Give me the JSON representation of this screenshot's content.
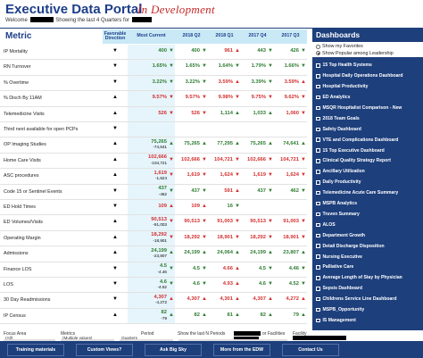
{
  "header": {
    "title": "Executive Data Portal",
    "dev_label": "In Development",
    "subtitle_prefix": "Welcome",
    "subtitle_suffix": "Showing the last 4 Quarters for"
  },
  "table": {
    "metric_header": "Metric",
    "fav_header": "Favorable Direction",
    "current_header": "Most Current",
    "quarters": [
      "2018 Q2",
      "2018 Q1",
      "2017 Q4",
      "2017 Q3"
    ],
    "rows": [
      {
        "name": "IP Mortality",
        "dir": "▼",
        "cur": [
          "400",
          "",
          "green",
          "down"
        ],
        "q": [
          [
            "400",
            "green",
            "down"
          ],
          [
            "961",
            "red",
            "up"
          ],
          [
            "443",
            "green",
            "down"
          ],
          [
            "426",
            "green",
            "down"
          ]
        ]
      },
      {
        "name": "RN Turnover",
        "dir": "▼",
        "cur": [
          "1.65%",
          "",
          "green",
          "down"
        ],
        "q": [
          [
            "1.65%",
            "green",
            "down"
          ],
          [
            "1.64%",
            "green",
            "down"
          ],
          [
            "1.79%",
            "green",
            "down"
          ],
          [
            "1.66%",
            "green",
            "down"
          ]
        ]
      },
      {
        "name": "% Overtime",
        "dir": "▼",
        "cur": [
          "3.22%",
          "",
          "green",
          "down"
        ],
        "q": [
          [
            "3.22%",
            "green",
            "down"
          ],
          [
            "3.59%",
            "red",
            "up"
          ],
          [
            "3.39%",
            "green",
            "down"
          ],
          [
            "3.59%",
            "red",
            "up"
          ]
        ]
      },
      {
        "name": "% Disch By 11AM",
        "dir": "▲",
        "cur": [
          "9.57%",
          "",
          "red",
          "down"
        ],
        "q": [
          [
            "9.57%",
            "red",
            "down"
          ],
          [
            "9.98%",
            "red",
            "down"
          ],
          [
            "9.75%",
            "red",
            "down"
          ],
          [
            "9.62%",
            "red",
            "down"
          ]
        ]
      },
      {
        "name": "Telemedicine Visits",
        "dir": "▲",
        "cur": [
          "526",
          "",
          "red",
          "down"
        ],
        "q": [
          [
            "526",
            "red",
            "down"
          ],
          [
            "1,114",
            "green",
            "up"
          ],
          [
            "1,033",
            "green",
            "up"
          ],
          [
            "1,060",
            "red",
            "down"
          ]
        ]
      },
      {
        "name": "Third next available for open PCPs",
        "dir": "▼",
        "cur": [
          "",
          "",
          "",
          ""
        ],
        "q": [
          [
            "",
            "",
            ""
          ],
          [
            "",
            "",
            ""
          ],
          [
            "",
            "",
            ""
          ],
          [
            "",
            "",
            ""
          ]
        ]
      },
      {
        "name": "OP Imaging Studies",
        "dir": "▲",
        "cur": [
          "75,265",
          "-74,641",
          "green",
          "up"
        ],
        "q": [
          [
            "75,265",
            "green",
            "up"
          ],
          [
            "77,295",
            "green",
            "up"
          ],
          [
            "75,265",
            "green",
            "up"
          ],
          [
            "74,641",
            "green",
            "up"
          ]
        ]
      },
      {
        "name": "Home Care Visits",
        "dir": "▲",
        "cur": [
          "102,666",
          "-104,721",
          "red",
          "down"
        ],
        "q": [
          [
            "102,666",
            "red",
            "down"
          ],
          [
            "104,721",
            "red",
            "down"
          ],
          [
            "102,666",
            "red",
            "down"
          ],
          [
            "104,721",
            "red",
            "down"
          ]
        ]
      },
      {
        "name": "ASC procedures",
        "dir": "▲",
        "cur": [
          "1,619",
          "-1,624",
          "red",
          "down"
        ],
        "q": [
          [
            "1,619",
            "red",
            "down"
          ],
          [
            "1,624",
            "red",
            "down"
          ],
          [
            "1,619",
            "red",
            "down"
          ],
          [
            "1,624",
            "red",
            "down"
          ]
        ]
      },
      {
        "name": "Code 15 or Sentinel Events",
        "dir": "▼",
        "cur": [
          "437",
          "-462",
          "green",
          "down"
        ],
        "q": [
          [
            "437",
            "green",
            "down"
          ],
          [
            "591",
            "red",
            "up"
          ],
          [
            "437",
            "green",
            "down"
          ],
          [
            "462",
            "green",
            "down"
          ]
        ]
      },
      {
        "name": "ED Hold Times",
        "dir": "▼",
        "cur": [
          "109",
          "",
          "red",
          "up"
        ],
        "q": [
          [
            "109",
            "red",
            "up"
          ],
          [
            "16",
            "green",
            "down"
          ],
          [
            "",
            "",
            ""
          ],
          [
            "",
            "",
            ""
          ]
        ]
      },
      {
        "name": "ED Volumes/Visits",
        "dir": "▲",
        "cur": [
          "90,513",
          "-91,003",
          "red",
          "down"
        ],
        "q": [
          [
            "90,513",
            "red",
            "down"
          ],
          [
            "91,003",
            "red",
            "down"
          ],
          [
            "90,513",
            "red",
            "down"
          ],
          [
            "91,003",
            "red",
            "down"
          ]
        ]
      },
      {
        "name": "Operating Margin",
        "dir": "▲",
        "cur": [
          "18,292",
          "-18,901",
          "red",
          "down"
        ],
        "q": [
          [
            "18,292",
            "red",
            "down"
          ],
          [
            "18,901",
            "red",
            "down"
          ],
          [
            "18,292",
            "red",
            "down"
          ],
          [
            "18,901",
            "red",
            "down"
          ]
        ]
      },
      {
        "name": "Admissions",
        "dir": "▲",
        "cur": [
          "24,199",
          "-23,807",
          "green",
          "up"
        ],
        "q": [
          [
            "24,199",
            "green",
            "up"
          ],
          [
            "24,064",
            "green",
            "up"
          ],
          [
            "24,199",
            "green",
            "up"
          ],
          [
            "23,807",
            "green",
            "up"
          ]
        ]
      },
      {
        "name": "Finance LOS",
        "dir": "▼",
        "cur": [
          "4.5",
          "-4.46",
          "green",
          "down"
        ],
        "q": [
          [
            "4.5",
            "green",
            "down"
          ],
          [
            "4.66",
            "red",
            "up"
          ],
          [
            "4.5",
            "green",
            "down"
          ],
          [
            "4.46",
            "green",
            "down"
          ]
        ]
      },
      {
        "name": "LOS",
        "dir": "▼",
        "cur": [
          "4.6",
          "-4.52",
          "green",
          "down"
        ],
        "q": [
          [
            "4.6",
            "green",
            "down"
          ],
          [
            "4.93",
            "red",
            "up"
          ],
          [
            "4.6",
            "green",
            "down"
          ],
          [
            "4.52",
            "green",
            "down"
          ]
        ]
      },
      {
        "name": "30 Day Readmissions",
        "dir": "▼",
        "cur": [
          "4,307",
          "-4,272",
          "red",
          "up"
        ],
        "q": [
          [
            "4,307",
            "red",
            "up"
          ],
          [
            "4,301",
            "red",
            "up"
          ],
          [
            "4,307",
            "red",
            "up"
          ],
          [
            "4,272",
            "red",
            "up"
          ]
        ]
      },
      {
        "name": "IP Census",
        "dir": "▲",
        "cur": [
          "82",
          "-79",
          "green",
          "up"
        ],
        "q": [
          [
            "82",
            "green",
            "up"
          ],
          [
            "81",
            "green",
            "up"
          ],
          [
            "82",
            "green",
            "up"
          ],
          [
            "79",
            "green",
            "up"
          ]
        ]
      }
    ]
  },
  "panel": {
    "title": "Dashboards",
    "radio_options": [
      "Show my Favorites",
      "Show Popular among Leadership"
    ],
    "items": [
      "15 Top Health Systems",
      "Hospital Daily Operations Dashboard",
      "Hospital Productivity",
      "ED Analytics",
      "MSQR Hospitalist Comparison - New",
      "2018 Team Goals",
      "Safety Dashboard",
      "VTE and Complications Dashboard",
      "15 Top Executive Dashboard",
      "Clinical Quality Strategy Report",
      "Ancillary Utilization",
      "Daily Productivity",
      "Telemedicine Acute Care Summary",
      "MSPB Analytics",
      "Truven Summary",
      "ALOS",
      "Department Growth",
      "Detail Discharge Disposition",
      "Nursing Executive",
      "Palliative Care",
      "Average Length of Stay by Physician",
      "Sepsis Dashboard",
      "Childrens Service Line Dashboard",
      "MSPB_Opportunity",
      "IS Management"
    ]
  },
  "filters": {
    "focus_area_label": "Focus Area",
    "focus_area_value": "(All)",
    "metrics_label": "Metrics",
    "metrics_value": "(Multiple values)",
    "period_label": "Period",
    "period_value": "Quarters",
    "show_last_label": "Show the last  N Periods",
    "facilities_label": "or Facilities",
    "facility_label": "Facility"
  },
  "buttons": [
    "Training materials",
    "Custom Views?",
    "Ask Big Sky",
    "More from the EDW",
    "Contact Us"
  ],
  "colors": {
    "navy": "#1d3f7c",
    "good": "#2e7d32",
    "bad": "#d32f2f",
    "highlight": "#c9e9f6"
  }
}
